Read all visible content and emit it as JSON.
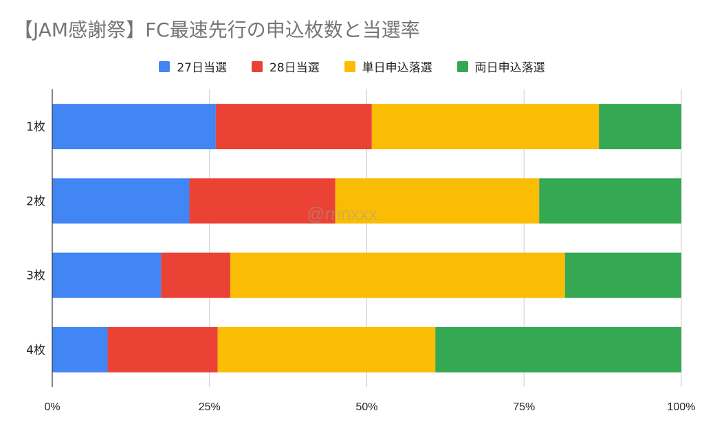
{
  "chart_data": {
    "type": "bar",
    "orientation": "horizontal",
    "stacked": "percent",
    "title": "【JAM感謝祭】FC最速先行の申込枚数と当選率",
    "categories": [
      "1枚",
      "2枚",
      "3枚",
      "4枚"
    ],
    "series": [
      {
        "name": "27日当選",
        "color": "#4285F4",
        "values": [
          26.0,
          21.8,
          17.3,
          8.8
        ]
      },
      {
        "name": "28日当選",
        "color": "#EA4335",
        "values": [
          24.8,
          23.2,
          11.0,
          17.5
        ]
      },
      {
        "name": "単日申込落選",
        "color": "#FBBC04",
        "values": [
          36.1,
          32.4,
          53.2,
          34.6
        ]
      },
      {
        "name": "両日申込落選",
        "color": "#34A853",
        "values": [
          13.1,
          22.6,
          18.5,
          39.1
        ]
      }
    ],
    "xlim": [
      0,
      100
    ],
    "xticks": [
      "0%",
      "25%",
      "50%",
      "75%",
      "100%"
    ],
    "grid": true,
    "legend_position": "top"
  },
  "watermark": "@rrinxxx"
}
